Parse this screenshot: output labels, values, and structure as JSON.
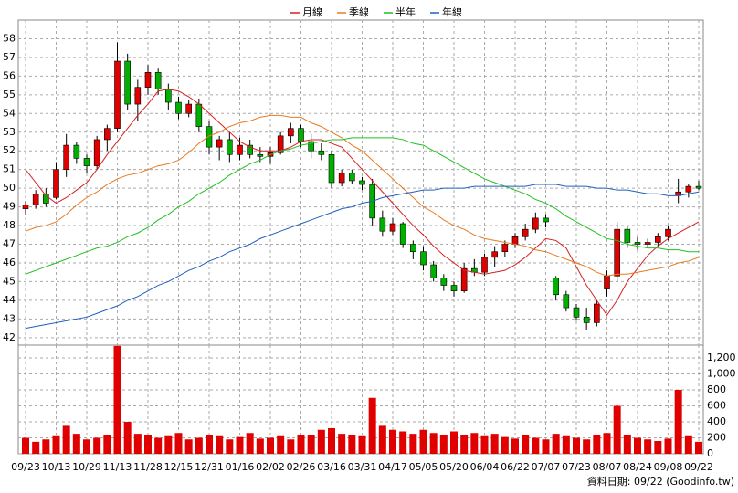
{
  "chart_data": {
    "type": "candlestick",
    "categories": [
      "09/23",
      null,
      null,
      "10/13",
      null,
      null,
      "10/29",
      null,
      null,
      "11/13",
      null,
      null,
      "11/28",
      null,
      null,
      "12/15",
      null,
      null,
      "12/31",
      null,
      null,
      "01/16",
      null,
      null,
      "02/02",
      null,
      null,
      "02/26",
      null,
      null,
      "03/16",
      null,
      null,
      "03/31",
      null,
      null,
      "04/17",
      null,
      null,
      "05/05",
      null,
      null,
      "05/20",
      null,
      null,
      "06/04",
      null,
      null,
      "06/22",
      null,
      null,
      "07/07",
      null,
      null,
      "07/23",
      null,
      null,
      "08/07",
      null,
      null,
      "08/24",
      null,
      null,
      "09/08",
      null,
      null,
      "09/22"
    ],
    "open": [
      48.9,
      49.1,
      49.7,
      49.5,
      51.0,
      52.3,
      51.6,
      51.2,
      52.6,
      53.2,
      56.8,
      54.5,
      55.4,
      56.2,
      55.3,
      54.6,
      54.0,
      54.5,
      53.3,
      52.2,
      52.6,
      51.8,
      52.3,
      51.8,
      51.7,
      51.9,
      52.8,
      53.2,
      52.5,
      52.0,
      51.8,
      50.3,
      50.8,
      50.4,
      50.2,
      48.4,
      47.7,
      48.1,
      47.0,
      46.6,
      45.9,
      45.2,
      44.8,
      44.5,
      45.7,
      45.5,
      46.3,
      46.6,
      47.0,
      47.4,
      47.8,
      48.4,
      45.2,
      44.3,
      43.6,
      43.1,
      42.8,
      44.6,
      45.3,
      47.8,
      47.1,
      47.0,
      47.1,
      47.4,
      49.6,
      49.8,
      50.1
    ],
    "high": [
      49.3,
      49.9,
      50.0,
      51.4,
      52.9,
      52.5,
      51.8,
      52.8,
      53.4,
      57.8,
      57.2,
      55.8,
      56.6,
      56.4,
      55.6,
      54.9,
      54.7,
      54.8,
      53.6,
      52.8,
      53.0,
      52.7,
      52.6,
      52.2,
      52.2,
      53.0,
      53.5,
      53.4,
      52.9,
      52.4,
      52.0,
      51.0,
      51.0,
      50.6,
      50.5,
      48.8,
      48.4,
      48.2,
      47.2,
      46.9,
      46.1,
      45.4,
      45.0,
      46.0,
      46.2,
      46.5,
      46.9,
      47.2,
      47.6,
      48.1,
      48.7,
      48.6,
      45.3,
      44.5,
      43.8,
      43.6,
      44.0,
      45.6,
      48.2,
      48.0,
      47.4,
      47.3,
      47.6,
      48.0,
      50.5,
      50.2,
      50.4
    ],
    "low": [
      48.6,
      48.9,
      49.0,
      49.4,
      50.6,
      51.3,
      50.8,
      51.0,
      52.0,
      53.0,
      54.2,
      53.6,
      55.0,
      55.0,
      54.2,
      53.7,
      53.8,
      53.0,
      51.8,
      51.5,
      51.4,
      51.5,
      51.6,
      51.4,
      51.3,
      51.8,
      52.4,
      52.2,
      51.6,
      51.5,
      50.0,
      50.1,
      50.2,
      49.9,
      48.0,
      47.4,
      47.5,
      46.8,
      46.2,
      45.6,
      45.0,
      44.5,
      44.2,
      44.4,
      45.3,
      45.3,
      45.8,
      46.3,
      46.8,
      47.2,
      47.6,
      47.9,
      44.0,
      43.4,
      42.9,
      42.4,
      42.6,
      44.2,
      45.0,
      46.8,
      46.7,
      46.8,
      46.9,
      47.2,
      49.2,
      49.5,
      49.9
    ],
    "close": [
      49.1,
      49.7,
      49.2,
      51.0,
      52.3,
      51.6,
      51.2,
      52.6,
      53.2,
      56.8,
      54.5,
      55.4,
      56.2,
      55.3,
      54.6,
      54.0,
      54.5,
      53.3,
      52.2,
      52.6,
      51.8,
      52.3,
      51.8,
      51.7,
      51.9,
      52.8,
      53.2,
      52.5,
      52.0,
      51.8,
      50.3,
      50.8,
      50.4,
      50.2,
      48.4,
      47.7,
      48.1,
      47.0,
      46.6,
      45.9,
      45.2,
      44.8,
      44.5,
      45.7,
      45.5,
      46.3,
      46.6,
      47.0,
      47.4,
      47.8,
      48.4,
      48.2,
      44.3,
      43.6,
      43.1,
      42.8,
      43.8,
      45.3,
      47.8,
      47.1,
      47.0,
      47.1,
      47.4,
      47.8,
      49.8,
      50.1,
      50.0
    ],
    "up_color": "#e00000",
    "down_color": "#00b000",
    "ylim": [
      41.6,
      59.0
    ],
    "yticks": [
      42,
      43,
      44,
      45,
      46,
      47,
      48,
      49,
      50,
      51,
      52,
      53,
      54,
      55,
      56,
      57,
      58
    ],
    "grid": true,
    "lines": [
      {
        "name": "月線",
        "color": "#d62020",
        "values": [
          51.0,
          50.3,
          49.6,
          49.2,
          49.5,
          49.9,
          50.3,
          51.0,
          51.8,
          52.5,
          53.2,
          53.9,
          54.5,
          55.2,
          55.3,
          55.2,
          54.9,
          54.5,
          54.0,
          53.5,
          53.0,
          52.5,
          52.2,
          52.0,
          52.0,
          52.0,
          52.2,
          52.5,
          52.6,
          52.6,
          52.4,
          52.2,
          51.6,
          51.0,
          50.4,
          49.8,
          49.2,
          48.6,
          48.0,
          47.5,
          46.9,
          46.4,
          46.0,
          45.6,
          45.5,
          45.4,
          45.5,
          45.6,
          45.9,
          46.3,
          46.8,
          47.3,
          47.2,
          46.8,
          45.8,
          44.8,
          44.0,
          43.2,
          44.0,
          45.0,
          45.7,
          46.4,
          46.9,
          47.3,
          47.6,
          47.9,
          48.2
        ]
      },
      {
        "name": "季線",
        "color": "#e87a20",
        "values": [
          47.7,
          47.9,
          48.0,
          48.2,
          48.6,
          49.1,
          49.5,
          49.8,
          50.2,
          50.5,
          50.7,
          50.8,
          51.0,
          51.2,
          51.3,
          51.5,
          51.9,
          52.4,
          52.8,
          53.0,
          53.3,
          53.5,
          53.6,
          53.8,
          53.9,
          53.9,
          53.8,
          53.8,
          53.5,
          53.3,
          53.0,
          52.7,
          52.3,
          52.0,
          51.5,
          51.0,
          50.5,
          50.0,
          49.5,
          49.0,
          48.7,
          48.3,
          48.0,
          47.8,
          47.5,
          47.3,
          47.2,
          47.1,
          47.0,
          46.9,
          46.7,
          46.6,
          46.4,
          46.2,
          46.0,
          45.8,
          45.5,
          45.3,
          45.4,
          45.4,
          45.5,
          45.6,
          45.7,
          45.8,
          46.0,
          46.1,
          46.3
        ]
      },
      {
        "name": "半年",
        "color": "#20c020",
        "values": [
          45.4,
          45.6,
          45.8,
          46.0,
          46.2,
          46.4,
          46.6,
          46.8,
          46.9,
          47.1,
          47.4,
          47.6,
          47.9,
          48.3,
          48.6,
          49.0,
          49.3,
          49.7,
          50.0,
          50.3,
          50.7,
          51.0,
          51.3,
          51.5,
          51.8,
          52.0,
          52.1,
          52.3,
          52.4,
          52.5,
          52.6,
          52.6,
          52.7,
          52.7,
          52.7,
          52.7,
          52.7,
          52.6,
          52.4,
          52.3,
          52.0,
          51.7,
          51.4,
          51.1,
          50.8,
          50.5,
          50.3,
          50.1,
          49.9,
          49.7,
          49.4,
          49.2,
          48.9,
          48.5,
          48.2,
          47.9,
          47.6,
          47.3,
          47.2,
          47.0,
          46.9,
          46.8,
          46.8,
          46.7,
          46.7,
          46.6,
          46.6
        ]
      },
      {
        "name": "年線",
        "color": "#2060c0",
        "values": [
          42.5,
          42.6,
          42.7,
          42.8,
          42.9,
          43.0,
          43.1,
          43.3,
          43.5,
          43.7,
          44.0,
          44.2,
          44.5,
          44.8,
          45.0,
          45.3,
          45.6,
          45.8,
          46.1,
          46.3,
          46.6,
          46.8,
          47.0,
          47.3,
          47.5,
          47.7,
          47.9,
          48.1,
          48.3,
          48.5,
          48.7,
          48.9,
          49.0,
          49.2,
          49.3,
          49.5,
          49.6,
          49.7,
          49.8,
          49.9,
          49.9,
          50.0,
          50.0,
          50.0,
          50.1,
          50.1,
          50.1,
          50.1,
          50.1,
          50.1,
          50.2,
          50.2,
          50.2,
          50.1,
          50.1,
          50.1,
          50.0,
          50.0,
          49.9,
          49.9,
          49.8,
          49.7,
          49.7,
          49.6,
          49.6,
          49.7,
          49.8
        ]
      }
    ],
    "volume": {
      "color": "#e00000",
      "values": [
        200,
        150,
        180,
        220,
        350,
        250,
        180,
        200,
        230,
        1350,
        400,
        250,
        230,
        200,
        220,
        260,
        180,
        200,
        240,
        220,
        180,
        210,
        260,
        190,
        200,
        220,
        180,
        230,
        240,
        300,
        320,
        250,
        230,
        220,
        700,
        350,
        300,
        280,
        250,
        300,
        260,
        240,
        280,
        230,
        260,
        220,
        250,
        210,
        190,
        230,
        200,
        180,
        250,
        220,
        200,
        180,
        230,
        260,
        600,
        230,
        200,
        180,
        160,
        190,
        800,
        220,
        150
      ],
      "ylim": [
        0,
        1360
      ],
      "yticks": [
        0,
        200,
        400,
        600,
        800,
        {
          "value": 1000,
          "label": "1,000"
        },
        {
          "value": 1200,
          "label": "1,200"
        }
      ]
    },
    "footer": "資料日期: 09/22 (Goodinfo.tw)"
  }
}
